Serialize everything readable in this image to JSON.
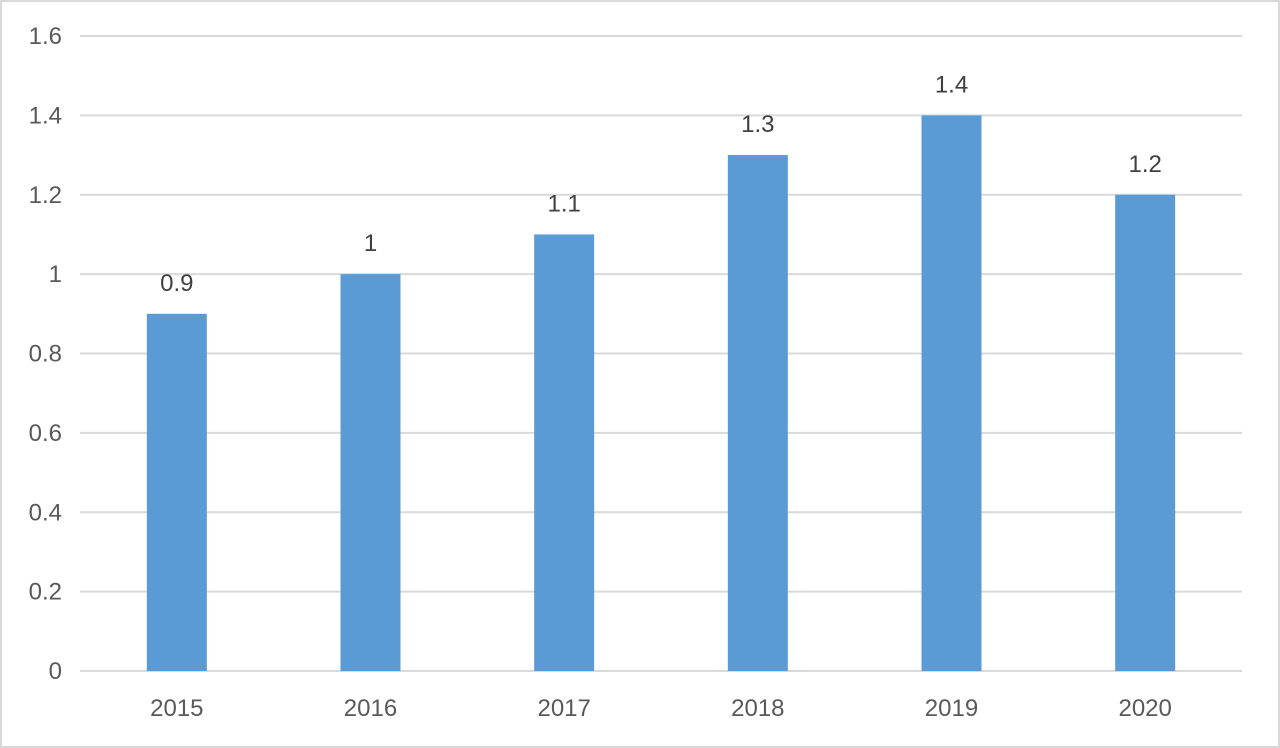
{
  "chart_data": {
    "type": "bar",
    "title": "",
    "xlabel": "",
    "ylabel": "",
    "categories": [
      "2015",
      "2016",
      "2017",
      "2018",
      "2019",
      "2020"
    ],
    "values": [
      0.9,
      1,
      1.1,
      1.3,
      1.4,
      1.2
    ],
    "data_labels": [
      "0.9",
      "1",
      "1.1",
      "1.3",
      "1.4",
      "1.2"
    ],
    "ylim": [
      0,
      1.6
    ],
    "y_ticks": [
      "0",
      "0.2",
      "0.4",
      "0.6",
      "0.8",
      "1",
      "1.2",
      "1.4",
      "1.6"
    ],
    "grid": true,
    "legend": "none",
    "bar_color": "#5b9bd5",
    "grid_color": "#d9d9d9",
    "text_color": "#595959"
  }
}
